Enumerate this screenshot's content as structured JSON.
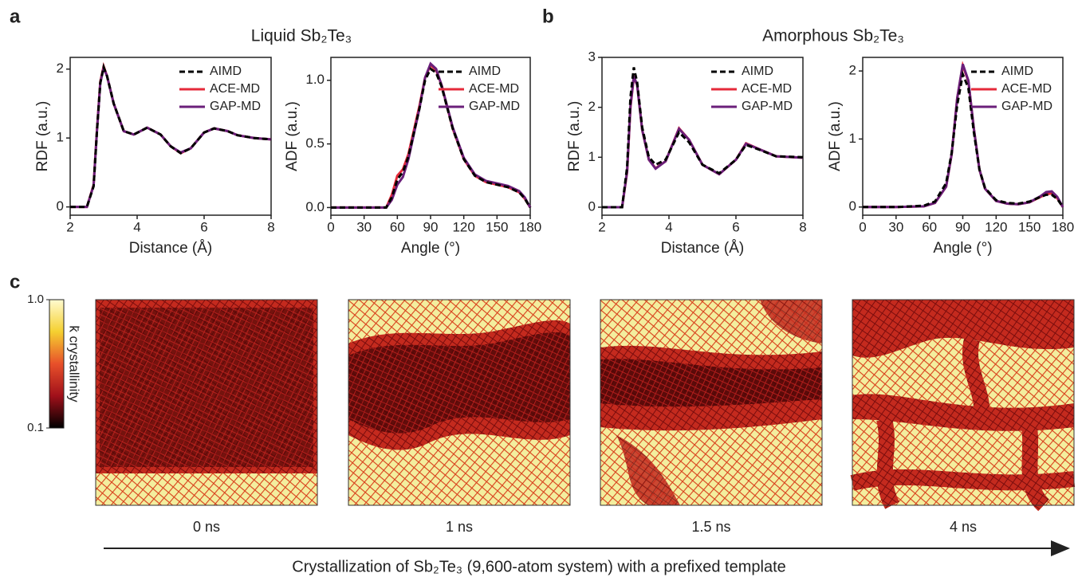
{
  "figure": {
    "panel_labels": [
      "a",
      "b",
      "c"
    ],
    "group_titles": [
      "Liquid Sb₂Te₃",
      "Amorphous Sb₂Te₃"
    ]
  },
  "chart_data": [
    {
      "type": "line",
      "xlabel": "Distance (Å)",
      "ylabel": "RDF (a.u.)",
      "xlim": [
        2,
        8
      ],
      "xticks": [
        2,
        4,
        6,
        8
      ],
      "ylim": [
        -0.12,
        2.17
      ],
      "yticks": [
        0,
        1,
        2
      ],
      "legend": "upper right",
      "x": [
        2,
        2.5,
        2.7,
        2.8,
        2.9,
        3.0,
        3.1,
        3.3,
        3.6,
        3.9,
        4.3,
        4.7,
        5.0,
        5.3,
        5.6,
        6.0,
        6.3,
        6.7,
        7.0,
        7.5,
        8.0
      ],
      "series": [
        {
          "name": "AIMD",
          "color": "#000000",
          "dashed": true,
          "values": [
            0,
            0,
            0.3,
            1.1,
            1.8,
            2.03,
            1.9,
            1.5,
            1.1,
            1.05,
            1.15,
            1.05,
            0.88,
            0.78,
            0.85,
            1.08,
            1.14,
            1.1,
            1.04,
            1.0,
            0.98
          ]
        },
        {
          "name": "ACE-MD",
          "color": "#e52a3a",
          "dashed": false,
          "values": [
            0,
            0,
            0.32,
            1.12,
            1.82,
            2.04,
            1.9,
            1.5,
            1.1,
            1.05,
            1.15,
            1.05,
            0.88,
            0.78,
            0.85,
            1.08,
            1.14,
            1.1,
            1.04,
            1.0,
            0.98
          ]
        },
        {
          "name": "GAP-MD",
          "color": "#6b1f7a",
          "dashed": false,
          "values": [
            0,
            0,
            0.31,
            1.1,
            1.8,
            2.02,
            1.9,
            1.5,
            1.1,
            1.05,
            1.15,
            1.05,
            0.88,
            0.79,
            0.85,
            1.08,
            1.14,
            1.1,
            1.04,
            1.0,
            0.98
          ]
        }
      ]
    },
    {
      "type": "line",
      "xlabel": "Angle (°)",
      "ylabel": "ADF (a.u.)",
      "xlim": [
        0,
        180
      ],
      "xticks": [
        0,
        30,
        60,
        90,
        120,
        150,
        180
      ],
      "ylim": [
        -0.06,
        1.18
      ],
      "yticks": [
        {
          "value": 0,
          "label": "0.0"
        },
        0.5,
        {
          "value": 1,
          "label": "1.0"
        }
      ],
      "legend": "upper right",
      "x": [
        0,
        30,
        50,
        55,
        60,
        65,
        70,
        80,
        85,
        90,
        95,
        100,
        110,
        120,
        130,
        140,
        150,
        160,
        170,
        175,
        180
      ],
      "series": [
        {
          "name": "AIMD",
          "color": "#000000",
          "dashed": true,
          "values": [
            0,
            0,
            0,
            0.08,
            0.22,
            0.28,
            0.4,
            0.78,
            1.0,
            1.09,
            1.06,
            0.95,
            0.62,
            0.38,
            0.25,
            0.2,
            0.18,
            0.16,
            0.12,
            0.07,
            0
          ]
        },
        {
          "name": "ACE-MD",
          "color": "#e52a3a",
          "dashed": false,
          "values": [
            0,
            0,
            0,
            0.1,
            0.25,
            0.3,
            0.42,
            0.8,
            1.02,
            1.12,
            1.08,
            0.96,
            0.62,
            0.38,
            0.25,
            0.2,
            0.18,
            0.16,
            0.12,
            0.07,
            0
          ]
        },
        {
          "name": "GAP-MD",
          "color": "#6b1f7a",
          "dashed": false,
          "values": [
            0,
            0,
            0,
            0.06,
            0.18,
            0.24,
            0.38,
            0.78,
            1.02,
            1.13,
            1.09,
            0.96,
            0.63,
            0.39,
            0.26,
            0.21,
            0.19,
            0.17,
            0.13,
            0.08,
            0
          ]
        }
      ]
    },
    {
      "type": "line",
      "xlabel": "Distance (Å)",
      "ylabel": "RDF (a.u.)",
      "xlim": [
        2,
        8
      ],
      "xticks": [
        2,
        4,
        6,
        8
      ],
      "ylim": [
        -0.16,
        3.0
      ],
      "yticks": [
        0,
        1,
        2,
        3
      ],
      "legend": "upper right",
      "x": [
        2,
        2.6,
        2.75,
        2.85,
        2.95,
        3.05,
        3.2,
        3.4,
        3.6,
        3.9,
        4.3,
        4.6,
        5.0,
        5.5,
        6.0,
        6.3,
        6.7,
        7.2,
        8.0
      ],
      "series": [
        {
          "name": "AIMD",
          "color": "#000000",
          "dashed": true,
          "values": [
            0,
            0,
            0.8,
            2.2,
            2.8,
            2.5,
            1.6,
            1.0,
            0.85,
            0.95,
            1.5,
            1.3,
            0.85,
            0.68,
            0.95,
            1.25,
            1.15,
            1.02,
            1.0
          ]
        },
        {
          "name": "ACE-MD",
          "color": "#e52a3a",
          "dashed": false,
          "values": [
            0,
            0,
            0.7,
            2.0,
            2.6,
            2.45,
            1.55,
            0.95,
            0.78,
            0.92,
            1.58,
            1.35,
            0.85,
            0.66,
            0.95,
            1.28,
            1.16,
            1.02,
            0.99
          ]
        },
        {
          "name": "GAP-MD",
          "color": "#6b1f7a",
          "dashed": false,
          "values": [
            0,
            0,
            0.72,
            2.02,
            2.62,
            2.45,
            1.55,
            0.95,
            0.77,
            0.92,
            1.57,
            1.35,
            0.85,
            0.66,
            0.95,
            1.27,
            1.16,
            1.02,
            0.99
          ]
        }
      ]
    },
    {
      "type": "line",
      "xlabel": "Angle (°)",
      "ylabel": "ADF (a.u.)",
      "xlim": [
        0,
        180
      ],
      "xticks": [
        0,
        30,
        60,
        90,
        120,
        150,
        180
      ],
      "ylim": [
        -0.12,
        2.2
      ],
      "yticks": [
        0,
        1,
        2
      ],
      "legend": "upper right",
      "x": [
        0,
        30,
        55,
        65,
        75,
        80,
        85,
        90,
        95,
        100,
        105,
        110,
        120,
        130,
        140,
        150,
        160,
        165,
        170,
        175,
        180
      ],
      "series": [
        {
          "name": "AIMD",
          "color": "#000000",
          "dashed": true,
          "values": [
            0,
            0,
            0.02,
            0.08,
            0.35,
            0.8,
            1.5,
            1.95,
            1.75,
            1.1,
            0.55,
            0.28,
            0.1,
            0.06,
            0.05,
            0.08,
            0.15,
            0.18,
            0.18,
            0.12,
            0
          ]
        },
        {
          "name": "ACE-MD",
          "color": "#e52a3a",
          "dashed": false,
          "values": [
            0,
            0,
            0.01,
            0.06,
            0.3,
            0.78,
            1.6,
            2.08,
            1.85,
            1.15,
            0.55,
            0.27,
            0.09,
            0.05,
            0.04,
            0.07,
            0.15,
            0.19,
            0.2,
            0.13,
            0
          ]
        },
        {
          "name": "GAP-MD",
          "color": "#6b1f7a",
          "dashed": false,
          "values": [
            0,
            0,
            0.01,
            0.06,
            0.3,
            0.78,
            1.6,
            2.1,
            1.86,
            1.15,
            0.55,
            0.27,
            0.09,
            0.05,
            0.04,
            0.07,
            0.16,
            0.22,
            0.23,
            0.15,
            0
          ]
        }
      ]
    }
  ],
  "crystallization": {
    "colorbar": {
      "label": "k̄ crystallinity",
      "scale": "log",
      "lim": [
        0.1,
        1.0
      ],
      "ticks": [
        {
          "value": 1.0,
          "label": "1.0"
        },
        0.1
      ]
    },
    "snapshots": [
      "0 ns",
      "1 ns",
      "1.5 ns",
      "4 ns"
    ],
    "caption": "Crystallization of Sb₂Te₃ (9,600-atom system) with a prefixed template"
  }
}
